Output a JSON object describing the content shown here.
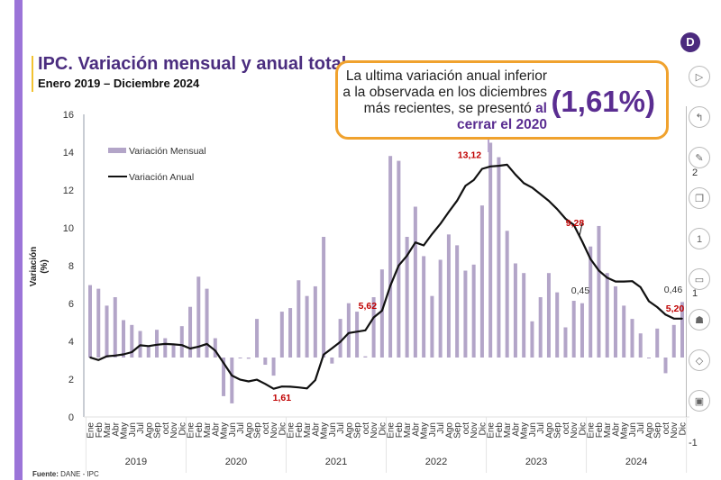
{
  "header": {
    "title": "IPC. Variación mensual y anual total",
    "subtitle": "Enero 2019 – Diciembre 2024"
  },
  "callout": {
    "line1": "La ultima variación anual inferior",
    "line2": "a la observada en los diciembres",
    "line3_plain": "más recientes, se presentó ",
    "line3_highlight": "al",
    "line4_highlight": "cerrar el 2020",
    "big_value": "(1,61%)"
  },
  "logo": {
    "letter": "D"
  },
  "toolbar": {
    "buttons": [
      {
        "name": "play-icon",
        "glyph": "▷"
      },
      {
        "name": "pointer-icon",
        "glyph": "↰"
      },
      {
        "name": "pen-icon",
        "glyph": "✎"
      },
      {
        "name": "copy-slide-icon",
        "glyph": "❐"
      },
      {
        "name": "slide-number-icon",
        "glyph": "1"
      },
      {
        "name": "video-icon",
        "glyph": "▭"
      },
      {
        "name": "presenter-icon",
        "glyph": "☗"
      },
      {
        "name": "navigate-icon",
        "glyph": "◇"
      },
      {
        "name": "screen-icon",
        "glyph": "▣"
      }
    ],
    "scale_labels": [
      "2",
      "1",
      "-1"
    ]
  },
  "source": {
    "label": "Fuente:",
    "value": "DANE - IPC"
  },
  "chart_data": {
    "type": "bar+line",
    "title": "IPC. Variación mensual y anual total",
    "ylabel": "Variación (%)",
    "ylim": [
      0,
      16
    ],
    "yticks": [
      0,
      2,
      4,
      6,
      8,
      10,
      12,
      14,
      16
    ],
    "y2lim": [
      -1,
      2.4
    ],
    "months": [
      "Ene",
      "Feb",
      "Mar",
      "Abr",
      "May",
      "Jun",
      "Jul",
      "Ago",
      "Sep",
      "oct",
      "Nov",
      "Dic"
    ],
    "years": [
      "2019",
      "2020",
      "2021",
      "2022",
      "2023",
      "2024"
    ],
    "legend": [
      "Variación Mensual",
      "Variación Anual"
    ],
    "legend_position": "top-left",
    "series": [
      {
        "name": "Variación Mensual",
        "type": "bar",
        "axis": "secondary",
        "color": "#b3a5c8",
        "values": [
          0.6,
          0.57,
          0.43,
          0.5,
          0.31,
          0.27,
          0.22,
          0.09,
          0.23,
          0.16,
          0.1,
          0.26,
          0.42,
          0.67,
          0.57,
          0.16,
          -0.32,
          -0.38,
          0.0,
          -0.01,
          0.32,
          -0.06,
          -0.15,
          0.38,
          0.41,
          0.64,
          0.51,
          0.59,
          1.0,
          -0.05,
          0.32,
          0.45,
          0.38,
          0.01,
          0.5,
          0.73,
          1.67,
          1.63,
          1.0,
          1.25,
          0.84,
          0.51,
          0.81,
          1.02,
          0.93,
          0.72,
          0.77,
          1.26,
          1.78,
          1.66,
          1.05,
          0.78,
          0.7,
          0.3,
          0.5,
          0.7,
          0.54,
          0.25,
          0.47,
          0.45,
          0.92,
          1.09,
          0.7,
          0.59,
          0.43,
          0.32,
          0.2,
          0.0,
          0.24,
          -0.13,
          0.27,
          0.46
        ]
      },
      {
        "name": "Variación Anual",
        "type": "line",
        "axis": "primary",
        "color": "#111111",
        "values": [
          3.15,
          3.01,
          3.21,
          3.25,
          3.31,
          3.43,
          3.79,
          3.75,
          3.82,
          3.86,
          3.84,
          3.8,
          3.62,
          3.72,
          3.86,
          3.51,
          2.85,
          2.19,
          1.97,
          1.88,
          1.97,
          1.75,
          1.49,
          1.61,
          1.6,
          1.56,
          1.51,
          1.95,
          3.3,
          3.63,
          3.97,
          4.44,
          4.51,
          4.58,
          5.26,
          5.62,
          6.94,
          8.01,
          8.53,
          9.23,
          9.07,
          9.67,
          10.21,
          10.84,
          11.44,
          12.22,
          12.53,
          13.12,
          13.25,
          13.28,
          13.34,
          12.82,
          12.36,
          12.13,
          11.78,
          11.43,
          10.99,
          10.48,
          10.15,
          9.28,
          8.35,
          7.74,
          7.36,
          7.16,
          7.16,
          7.18,
          6.86,
          6.12,
          5.81,
          5.41,
          5.2,
          5.2
        ]
      }
    ],
    "annotations": [
      {
        "text": "1,61",
        "index": 23,
        "series": "Variación Anual",
        "color": "#c00000"
      },
      {
        "text": "5,62",
        "index": 35,
        "series": "Variación Anual",
        "color": "#c00000"
      },
      {
        "text": "13,12",
        "index": 47,
        "series": "Variación Anual",
        "color": "#c00000"
      },
      {
        "text": "9,28",
        "index": 59,
        "series": "Variación Anual",
        "color": "#c00000"
      },
      {
        "text": "5,20",
        "index": 71,
        "series": "Variación Anual",
        "color": "#c00000"
      },
      {
        "text": "0,45",
        "index": 59,
        "series": "Variación Mensual",
        "color": "#333333"
      },
      {
        "text": "0,46",
        "index": 71,
        "series": "Variación Mensual",
        "color": "#333333"
      }
    ]
  }
}
